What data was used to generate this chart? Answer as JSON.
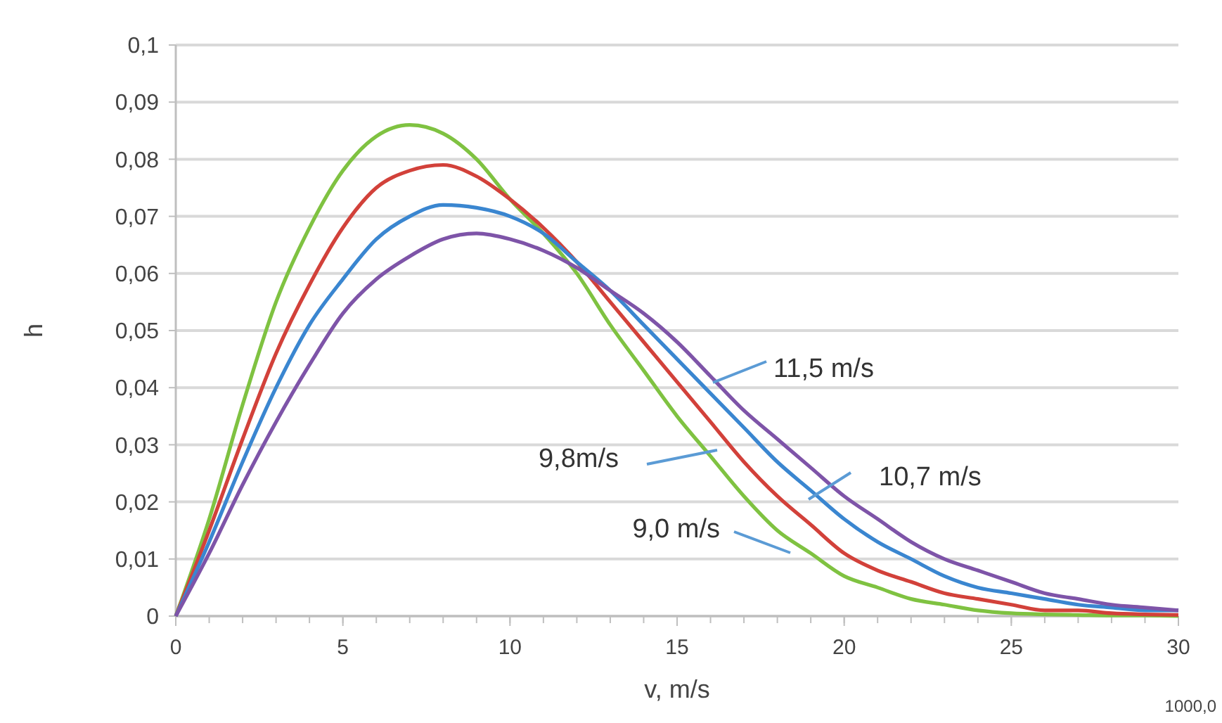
{
  "chart_data": {
    "type": "line",
    "xlabel": "v, m/s",
    "ylabel": "h",
    "x": [
      0,
      1,
      2,
      3,
      4,
      5,
      6,
      7,
      8,
      9,
      10,
      11,
      12,
      13,
      14,
      15,
      16,
      17,
      18,
      19,
      20,
      21,
      22,
      23,
      24,
      25,
      26,
      27,
      28,
      29,
      30
    ],
    "series": [
      {
        "color": "#7fc241",
        "values": [
          0,
          0.017,
          0.037,
          0.055,
          0.068,
          0.078,
          0.084,
          0.086,
          0.0845,
          0.08,
          0.073,
          0.067,
          0.06,
          0.051,
          0.043,
          0.035,
          0.028,
          0.021,
          0.015,
          0.011,
          0.007,
          0.005,
          0.003,
          0.002,
          0.001,
          0.0005,
          0.0003,
          0.0002,
          0.0001,
          0.0001,
          0
        ]
      },
      {
        "color": "#d2413a",
        "values": [
          0,
          0.015,
          0.031,
          0.046,
          0.058,
          0.068,
          0.075,
          0.078,
          0.079,
          0.077,
          0.073,
          0.068,
          0.062,
          0.055,
          0.048,
          0.041,
          0.034,
          0.027,
          0.021,
          0.016,
          0.011,
          0.008,
          0.006,
          0.004,
          0.003,
          0.002,
          0.001,
          0.001,
          0.0005,
          0.0003,
          0.0002
        ]
      },
      {
        "color": "#3a86d0",
        "values": [
          0,
          0.013,
          0.027,
          0.04,
          0.051,
          0.059,
          0.066,
          0.07,
          0.072,
          0.0715,
          0.07,
          0.067,
          0.062,
          0.057,
          0.051,
          0.045,
          0.039,
          0.033,
          0.027,
          0.022,
          0.017,
          0.013,
          0.01,
          0.007,
          0.005,
          0.004,
          0.003,
          0.002,
          0.0015,
          0.001,
          0.001
        ]
      },
      {
        "color": "#7e54a8",
        "values": [
          0,
          0.011,
          0.023,
          0.034,
          0.044,
          0.053,
          0.059,
          0.063,
          0.066,
          0.067,
          0.066,
          0.064,
          0.061,
          0.057,
          0.053,
          0.048,
          0.042,
          0.036,
          0.031,
          0.026,
          0.021,
          0.017,
          0.013,
          0.01,
          0.008,
          0.006,
          0.004,
          0.003,
          0.002,
          0.0015,
          0.001
        ]
      }
    ],
    "xlim": [
      0,
      30
    ],
    "xticks": [
      0,
      5,
      10,
      15,
      20,
      25,
      30
    ],
    "ylim": [
      0,
      0.1
    ],
    "yticks": [
      {
        "value": 0,
        "label": "0"
      },
      {
        "value": 0.01,
        "label": "0,01"
      },
      {
        "value": 0.02,
        "label": "0,02"
      },
      {
        "value": 0.03,
        "label": "0,03"
      },
      {
        "value": 0.04,
        "label": "0,04"
      },
      {
        "value": 0.05,
        "label": "0,05"
      },
      {
        "value": 0.06,
        "label": "0,06"
      },
      {
        "value": 0.07,
        "label": "0,07"
      },
      {
        "value": 0.08,
        "label": "0,08"
      },
      {
        "value": 0.09,
        "label": "0,09"
      },
      {
        "value": 0.1,
        "label": "0,1"
      }
    ],
    "grid": "y",
    "marker": "none",
    "line_style": "solid",
    "annotations": [
      "11,5 m/s",
      "9,8m/s",
      "10,7 m/s",
      "9,0 m/s",
      "1000,0"
    ]
  }
}
